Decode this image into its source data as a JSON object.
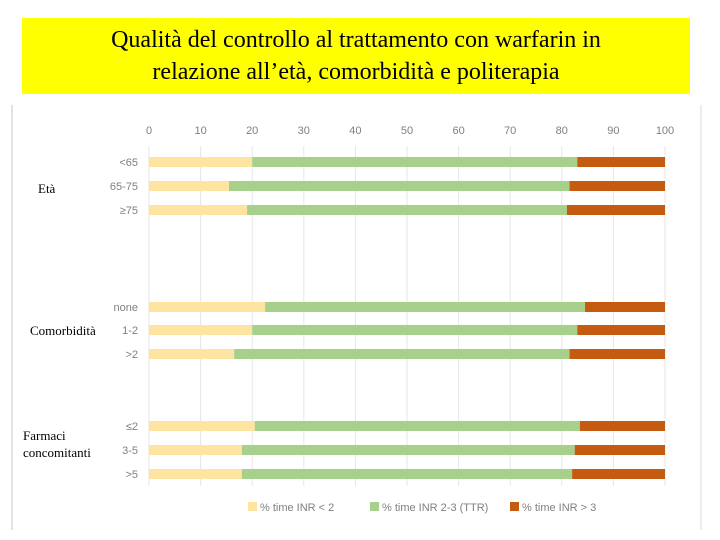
{
  "title": {
    "line1": "Qualità del controllo al trattamento con warfarin in",
    "line2": "relazione all’età, comorbidità e politerapia"
  },
  "group_labels": {
    "eta": "Età",
    "comorbidita": "Comorbidità",
    "farmaci_line1": "Farmaci",
    "farmaci_line2": "concomitanti"
  },
  "colors": {
    "below": "#fde4a0",
    "in_range": "#a8d08d",
    "above": "#c55a11",
    "title_bg": "#ffff00",
    "axis_text": "#7f7f7f",
    "grid": "#e6e6e6"
  },
  "chart_data": {
    "type": "bar",
    "orientation": "horizontal",
    "stacked": true,
    "xlim": [
      0,
      100
    ],
    "xticks": [
      "0",
      "10",
      "20",
      "30",
      "40",
      "50",
      "60",
      "70",
      "80",
      "90",
      "100"
    ],
    "grid": true,
    "legend_position": "bottom",
    "groups": [
      {
        "name": "Età",
        "categories": [
          "<65",
          "65-75",
          "≥75"
        ]
      },
      {
        "name": "Comorbidità",
        "categories": [
          "none",
          "1-2",
          ">2"
        ]
      },
      {
        "name": "Farmaci concomitanti",
        "categories": [
          "≤2",
          "3-5",
          ">5"
        ]
      }
    ],
    "categories": [
      "<65",
      "65-75",
      "≥75",
      "none",
      "1-2",
      ">2",
      "≤2",
      "3-5",
      ">5"
    ],
    "series": [
      {
        "name": "% time INR < 2",
        "values": [
          20,
          15.5,
          19,
          22.5,
          20,
          16.5,
          20.5,
          18,
          18
        ]
      },
      {
        "name": "% time INR 2-3 (TTR)",
        "values": [
          63,
          66,
          62,
          62,
          63,
          65,
          63,
          64.5,
          64
        ]
      },
      {
        "name": "% time INR > 3",
        "values": [
          17,
          18.5,
          19,
          15.5,
          17,
          18.5,
          16.5,
          17.5,
          18
        ]
      }
    ]
  }
}
